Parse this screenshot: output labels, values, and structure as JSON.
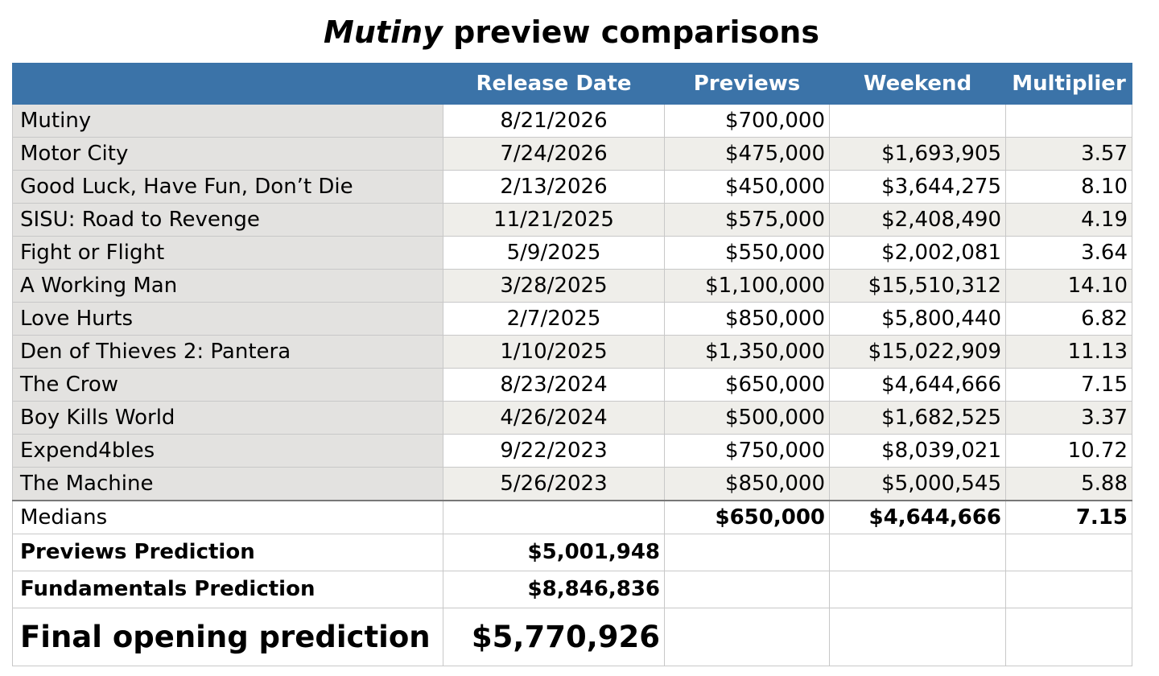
{
  "title": {
    "italic": "Mutiny",
    "rest": " preview comparisons"
  },
  "headers": [
    "",
    "Release Date",
    "Previews",
    "Weekend",
    "Multiplier"
  ],
  "rows": [
    [
      "Mutiny",
      "8/21/2026",
      "$700,000",
      "",
      ""
    ],
    [
      "Motor City",
      "7/24/2026",
      "$475,000",
      "$1,693,905",
      "3.57"
    ],
    [
      "Good Luck, Have Fun, Don’t Die",
      "2/13/2026",
      "$450,000",
      "$3,644,275",
      "8.10"
    ],
    [
      "SISU: Road to Revenge",
      "11/21/2025",
      "$575,000",
      "$2,408,490",
      "4.19"
    ],
    [
      "Fight or Flight",
      "5/9/2025",
      "$550,000",
      "$2,002,081",
      "3.64"
    ],
    [
      "A Working Man",
      "3/28/2025",
      "$1,100,000",
      "$15,510,312",
      "14.10"
    ],
    [
      "Love Hurts",
      "2/7/2025",
      "$850,000",
      "$5,800,440",
      "6.82"
    ],
    [
      "Den of Thieves 2: Pantera",
      "1/10/2025",
      "$1,350,000",
      "$15,022,909",
      "11.13"
    ],
    [
      "The Crow",
      "8/23/2024",
      "$650,000",
      "$4,644,666",
      "7.15"
    ],
    [
      "Boy Kills World",
      "4/26/2024",
      "$500,000",
      "$1,682,525",
      "3.37"
    ],
    [
      "Expend4bles",
      "9/22/2023",
      "$750,000",
      "$8,039,021",
      "10.72"
    ],
    [
      "The Machine",
      "5/26/2023",
      "$850,000",
      "$5,000,545",
      "5.88"
    ]
  ],
  "medians": {
    "label": "Medians",
    "previews": "$650,000",
    "weekend": "$4,644,666",
    "multiplier": "7.15"
  },
  "previews_prediction": {
    "label": "Previews Prediction",
    "value": "$5,001,948"
  },
  "fundamentals_prediction": {
    "label": "Fundamentals Prediction",
    "value": "$8,846,836"
  },
  "final_prediction": {
    "label": "Final opening prediction",
    "value": "$5,770,926"
  }
}
